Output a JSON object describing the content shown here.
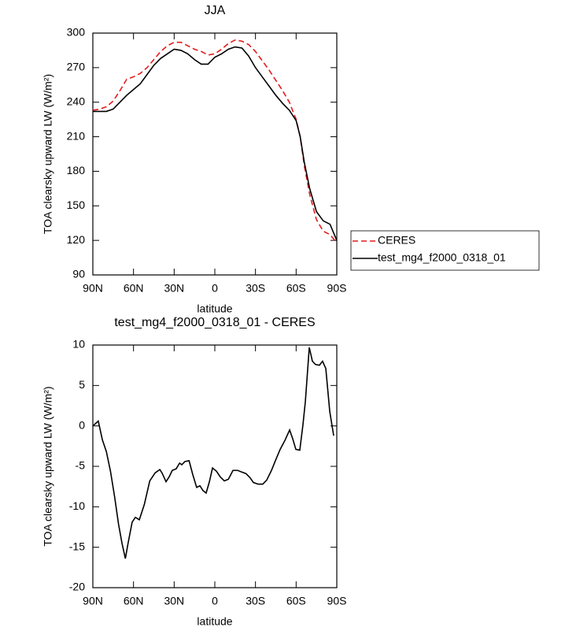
{
  "chart_data": [
    {
      "type": "line",
      "title": "JJA",
      "xlabel": "latitude",
      "ylabel": "TOA clearsky upward LW (W/m²)",
      "xlim": [
        90,
        -90
      ],
      "xticks": [
        {
          "value": 90,
          "label": "90N"
        },
        {
          "value": 60,
          "label": "60N"
        },
        {
          "value": 30,
          "label": "30N"
        },
        0,
        {
          "value": -30,
          "label": "30S"
        },
        {
          "value": -60,
          "label": "60S"
        },
        {
          "value": -90,
          "label": "90S"
        }
      ],
      "ylim": [
        90,
        300
      ],
      "yticks": [
        90,
        120,
        150,
        180,
        210,
        240,
        270,
        300
      ],
      "legend": "outside-right",
      "x": [
        90,
        85,
        80,
        75,
        70,
        65,
        60,
        55,
        50,
        45,
        40,
        35,
        30,
        25,
        20,
        15,
        10,
        5,
        0,
        -5,
        -10,
        -15,
        -20,
        -25,
        -30,
        -35,
        -40,
        -45,
        -50,
        -55,
        -60,
        -63,
        -66,
        -70,
        -75,
        -80,
        -85,
        -90
      ],
      "series": [
        {
          "name": "CERES",
          "color": "#e41a1c",
          "line_style": "dashed",
          "values": [
            233,
            234,
            236,
            241,
            250,
            260,
            262,
            265,
            270,
            277,
            284,
            289,
            292,
            292,
            289,
            286,
            284,
            281,
            282,
            286,
            291,
            294,
            293,
            290,
            284,
            276,
            268,
            259,
            250,
            240,
            225,
            210,
            185,
            160,
            138,
            128,
            125,
            118
          ]
        },
        {
          "name": "test_mg4_f2000_0318_01",
          "color": "#000000",
          "line_style": "solid",
          "values": [
            232,
            232,
            232,
            234,
            240,
            246,
            251,
            256,
            264,
            272,
            278,
            282,
            286,
            285,
            282,
            277,
            273,
            273,
            279,
            282,
            286,
            288,
            287,
            280,
            270,
            262,
            254,
            246,
            239,
            233,
            224,
            210,
            188,
            165,
            145,
            137,
            134,
            120
          ]
        }
      ]
    },
    {
      "type": "line",
      "title": "test_mg4_f2000_0318_01 - CERES",
      "xlabel": "latitude",
      "ylabel": "TOA clearsky upward LW (W/m²)",
      "xlim": [
        90,
        -90
      ],
      "xticks": [
        {
          "value": 90,
          "label": "90N"
        },
        {
          "value": 60,
          "label": "60N"
        },
        {
          "value": 30,
          "label": "30N"
        },
        0,
        {
          "value": -30,
          "label": "30S"
        },
        {
          "value": -60,
          "label": "60S"
        },
        {
          "value": -90,
          "label": "90S"
        }
      ],
      "ylim": [
        -20,
        10
      ],
      "yticks": [
        -20,
        -15,
        -10,
        -5,
        0,
        5,
        10
      ],
      "x": [
        90,
        86,
        83,
        80,
        77,
        74,
        71,
        68.5,
        66,
        64,
        61,
        58.6,
        55.7,
        52,
        48,
        44,
        40.6,
        39,
        36,
        33.7,
        31.4,
        28.5,
        26,
        24.4,
        22,
        19,
        16.3,
        13.4,
        11,
        8.7,
        6.4,
        4,
        1.7,
        -1.2,
        -4,
        -7,
        -10,
        -13.4,
        -16.9,
        -19.8,
        -23,
        -26,
        -28.5,
        -32,
        -35.4,
        -38.3,
        -41.8,
        -44.7,
        -48.2,
        -51.7,
        -55.2,
        -57.5,
        -59.8,
        -62.7,
        -65,
        -66.8,
        -69.7,
        -72,
        -74.3,
        -77.2,
        -79.5,
        -81.9,
        -84.8,
        -87.7
      ],
      "series": [
        {
          "color": "#000000",
          "line_style": "solid",
          "values": [
            0,
            0.6,
            -1.7,
            -3.2,
            -5.6,
            -8.7,
            -12.2,
            -14.5,
            -16.4,
            -14.5,
            -11.9,
            -11.3,
            -11.6,
            -9.7,
            -6.8,
            -5.8,
            -5.4,
            -5.8,
            -6.9,
            -6.3,
            -5.5,
            -5.3,
            -4.6,
            -4.8,
            -4.4,
            -4.3,
            -6,
            -7.6,
            -7.4,
            -8,
            -8.3,
            -6.9,
            -5.2,
            -5.6,
            -6.3,
            -6.8,
            -6.6,
            -5.5,
            -5.5,
            -5.7,
            -5.9,
            -6.4,
            -7,
            -7.2,
            -7.2,
            -6.7,
            -5.5,
            -4.3,
            -2.9,
            -1.8,
            -0.5,
            -1.6,
            -2.9,
            -3,
            0.1,
            3,
            9.7,
            8,
            7.6,
            7.5,
            8,
            7.1,
            1.8,
            -1.2
          ]
        }
      ]
    }
  ]
}
